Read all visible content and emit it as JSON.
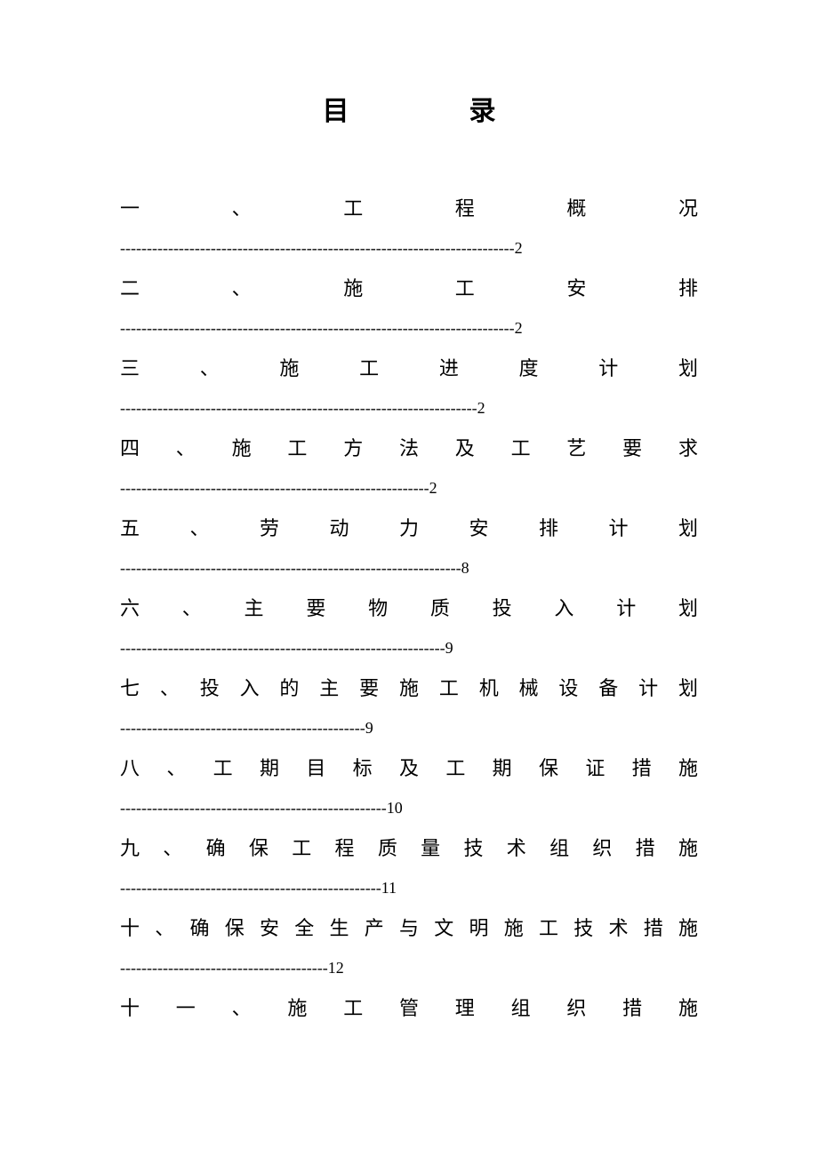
{
  "title": {
    "char1": "目",
    "char2": "录"
  },
  "toc": {
    "entries": [
      {
        "label": "一 、 工 程 概 况",
        "dashes": "--------------------------------------------------------------------------2"
      },
      {
        "label": "二 、 施 工 安 排",
        "dashes": "--------------------------------------------------------------------------2"
      },
      {
        "label": "三 、 施 工 进 度 计 划",
        "dashes": "-------------------------------------------------------------------2"
      },
      {
        "label": "四 、 施 工 方 法 及 工 艺 要 求",
        "dashes": "----------------------------------------------------------2"
      },
      {
        "label": "五 、 劳 动 力 安 排 计 划",
        "dashes": "----------------------------------------------------------------8"
      },
      {
        "label": "六 、 主 要 物 质 投 入 计 划",
        "dashes": "-------------------------------------------------------------9"
      },
      {
        "label": "七 、 投 入 的 主 要 施 工 机 械 设 备 计 划",
        "dashes": "----------------------------------------------9"
      },
      {
        "label": "八 、 工 期 目 标 及 工 期 保 证 措 施",
        "dashes": "--------------------------------------------------10"
      },
      {
        "label": "九 、 确 保 工 程 质 量 技 术 组 织 措 施",
        "dashes": "-------------------------------------------------11"
      },
      {
        "label": "十 、 确 保 安 全 生 产 与 文 明 施 工 技 术 措 施",
        "dashes": "---------------------------------------12"
      },
      {
        "label": "十 一 、 施 工 管 理 组 织 措 施",
        "dashes": ""
      }
    ]
  },
  "colors": {
    "background": "#ffffff",
    "text": "#000000"
  },
  "typography": {
    "title_fontsize": 30,
    "body_fontsize": 22,
    "dashes_fontsize": 18,
    "font_family": "SimSun"
  }
}
